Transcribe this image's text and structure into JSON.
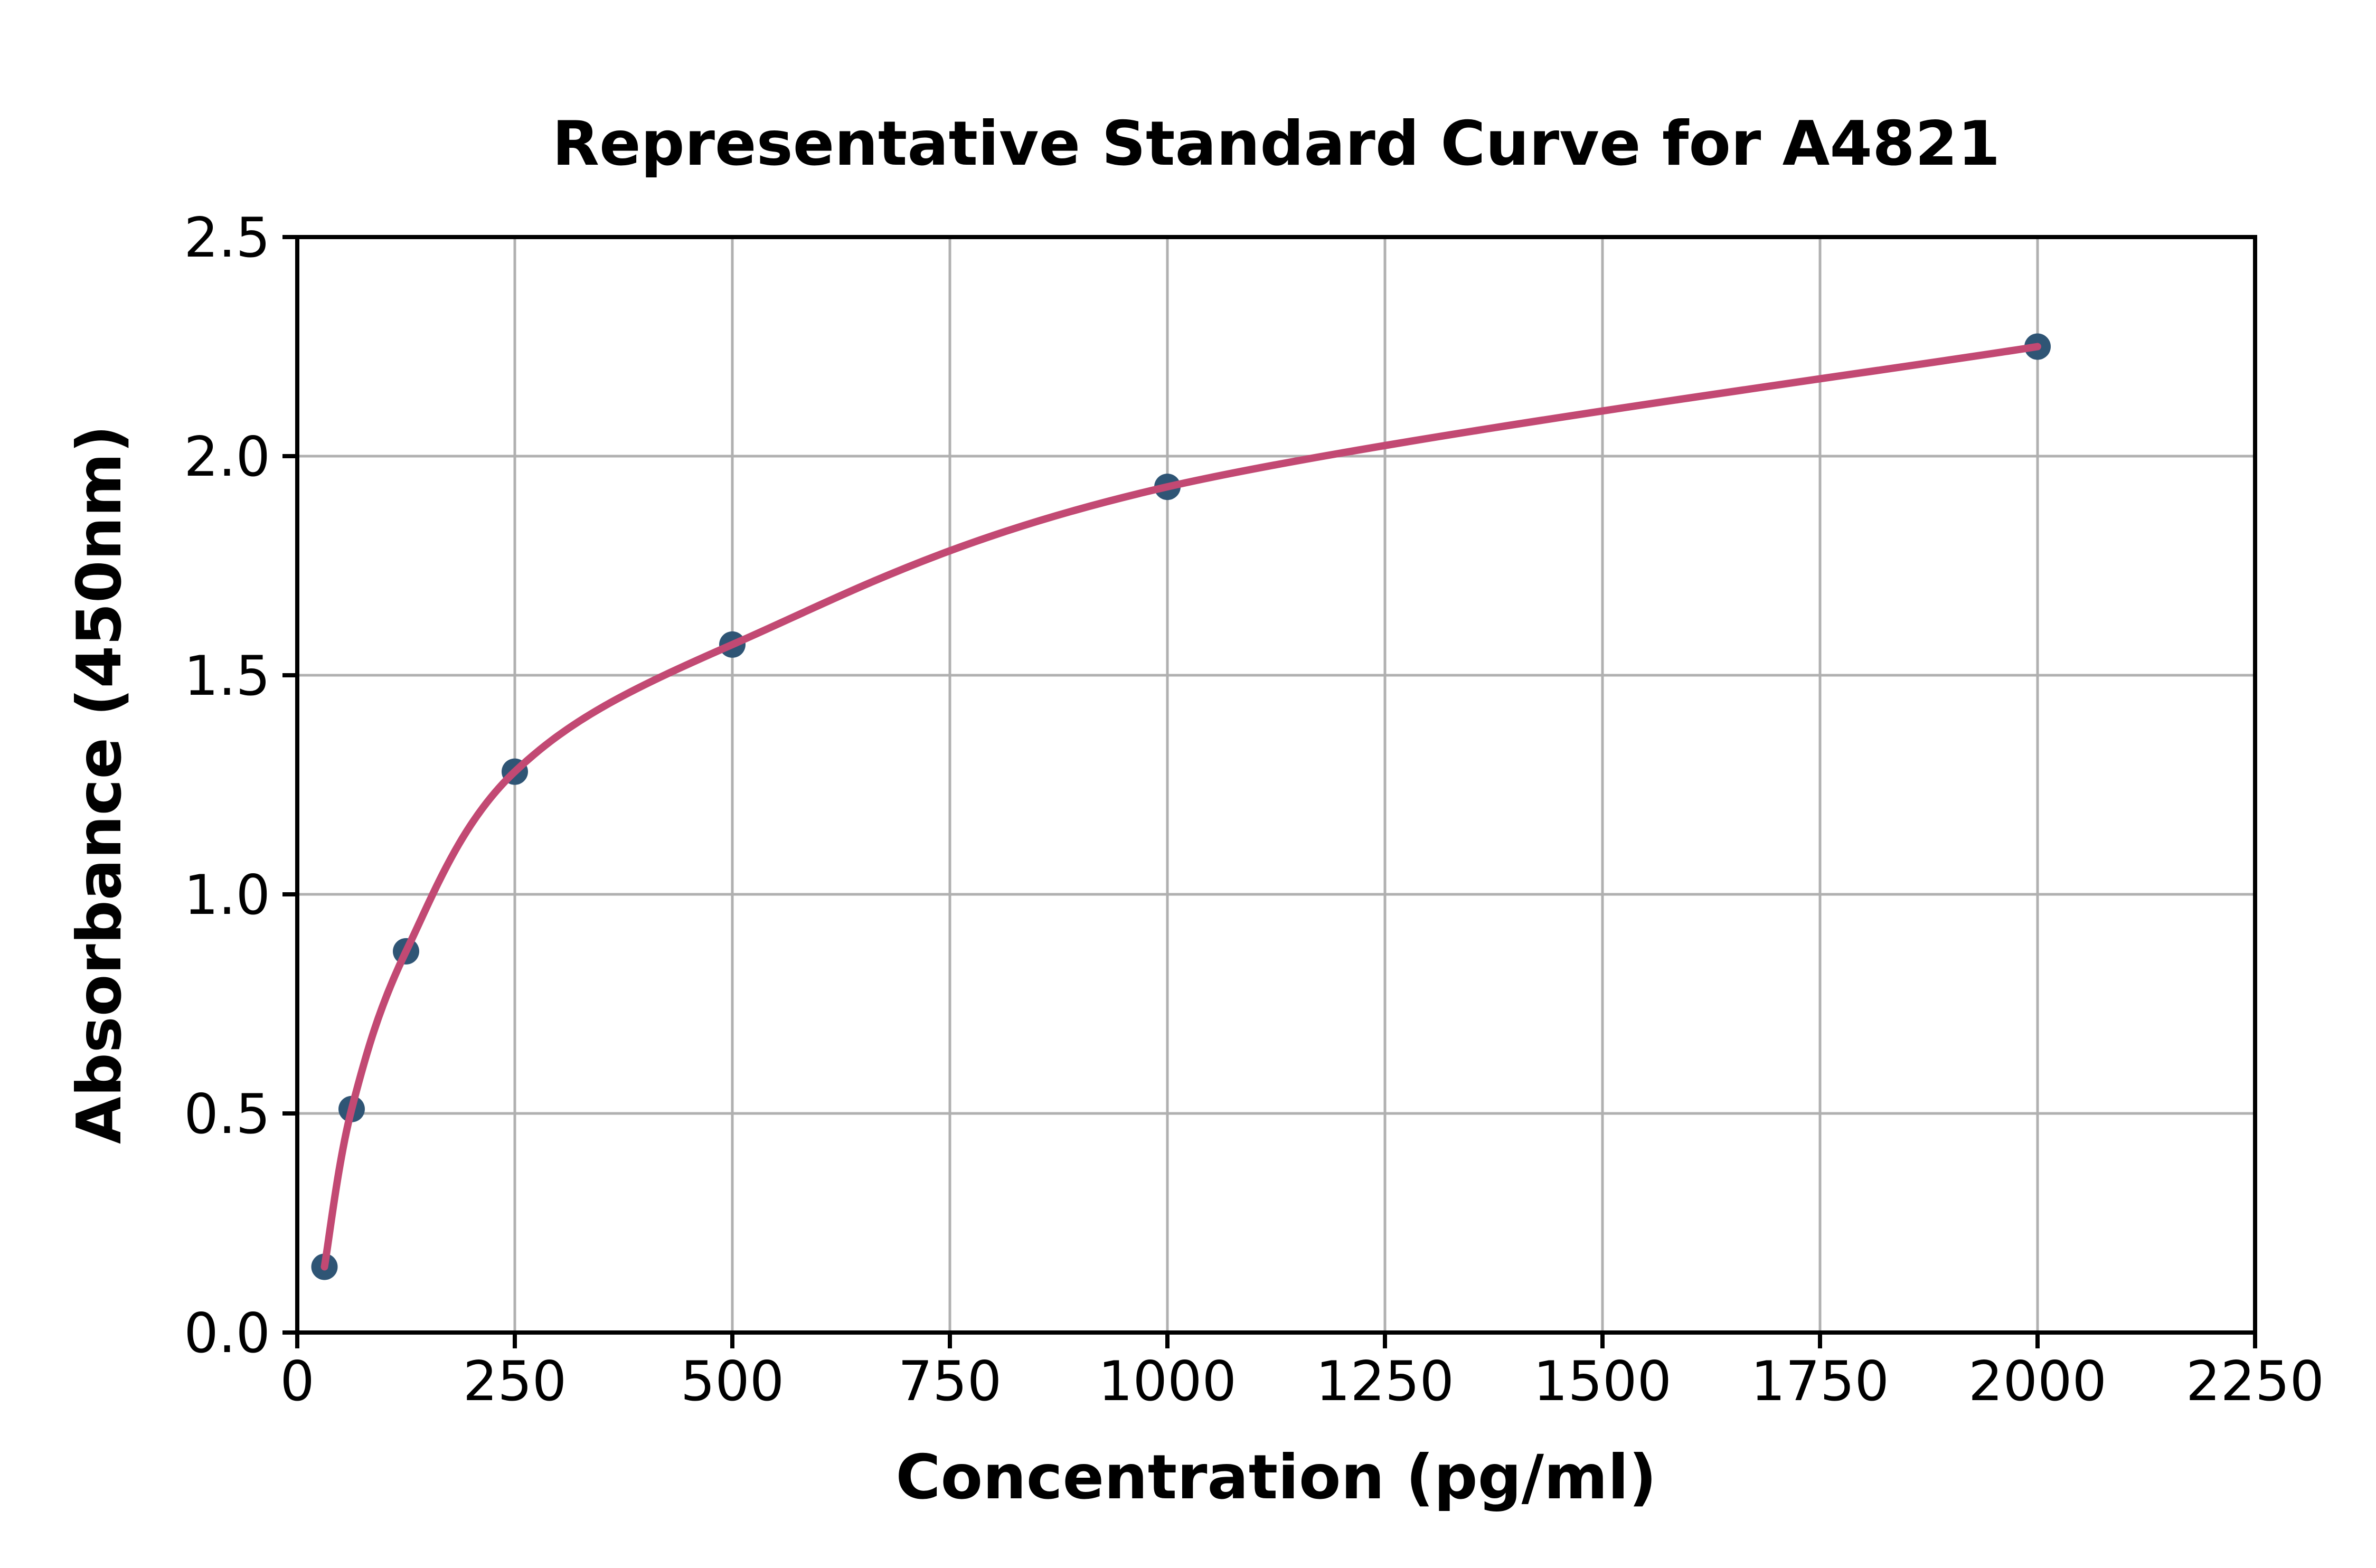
{
  "figure": {
    "background": "#ffffff"
  },
  "colors": {
    "curve": "#c24973",
    "point": "#2f5575",
    "grid": "#b0b0b0",
    "axis": "#000000",
    "text": "#000000"
  },
  "chart_data": {
    "type": "scatter",
    "title": "Representative Standard Curve for A4821",
    "xlabel": "Concentration (pg/ml)",
    "ylabel": "Absorbance (450nm)",
    "x": [
      31.25,
      62.5,
      125,
      250,
      500,
      1000,
      2000
    ],
    "y": [
      0.15,
      0.51,
      0.87,
      1.28,
      1.57,
      1.93,
      2.25
    ],
    "series": [
      {
        "name": "standard-points",
        "style": "filled-circle-markers",
        "x": [
          31.25,
          62.5,
          125,
          250,
          500,
          1000,
          2000
        ],
        "y": [
          0.15,
          0.51,
          0.87,
          1.28,
          1.57,
          1.93,
          2.25
        ]
      },
      {
        "name": "fitted-curve",
        "style": "smooth-line-through-points",
        "x": [
          31.25,
          62.5,
          125,
          250,
          500,
          1000,
          2000
        ],
        "y": [
          0.15,
          0.51,
          0.87,
          1.28,
          1.57,
          1.93,
          2.25
        ]
      }
    ],
    "xlim": [
      0,
      2250
    ],
    "ylim": [
      0.0,
      2.5
    ],
    "x_ticks": [
      0,
      250,
      500,
      750,
      1000,
      1250,
      1500,
      1750,
      2000,
      2250
    ],
    "y_ticks": [
      0.0,
      0.5,
      1.0,
      1.5,
      2.0,
      2.5
    ],
    "y_tick_decimals": 1,
    "grid": true,
    "legend_position": "none"
  }
}
